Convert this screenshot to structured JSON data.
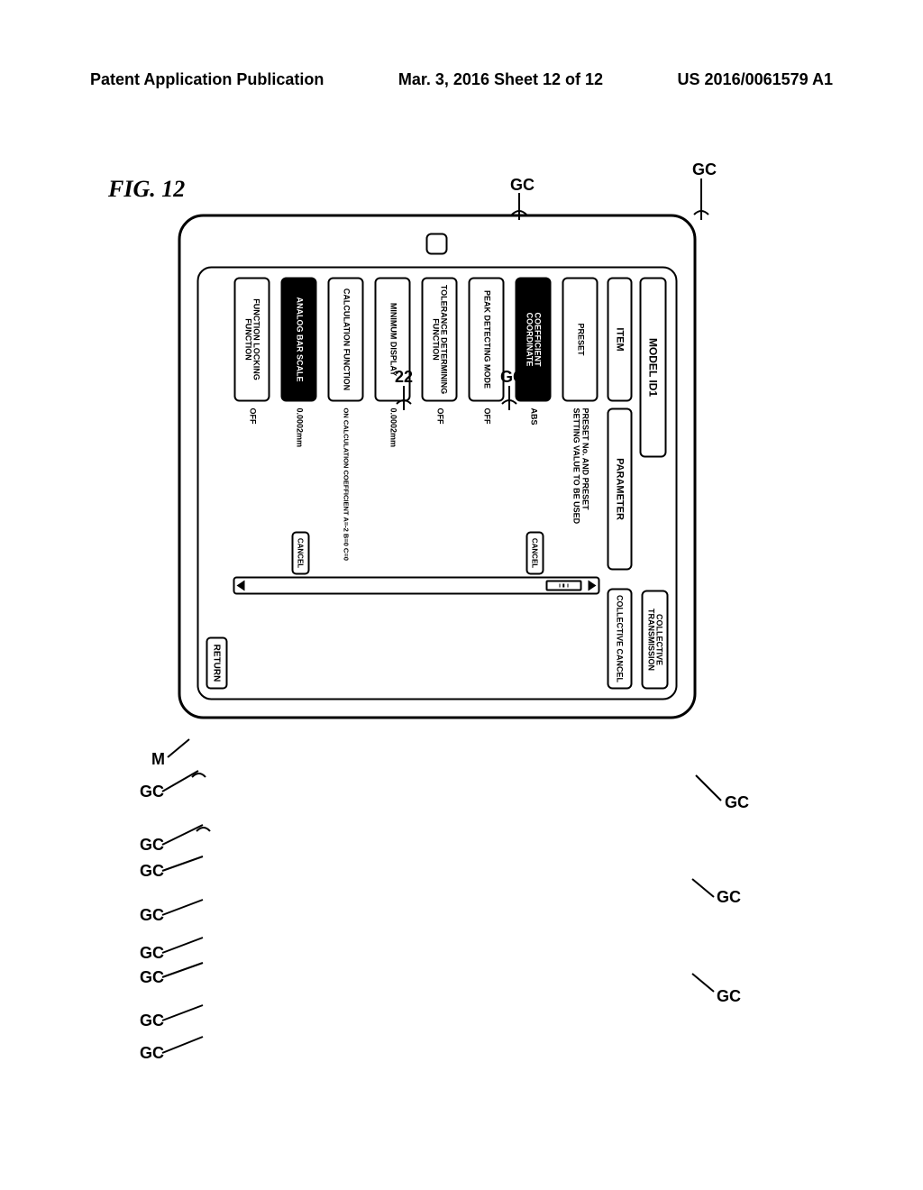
{
  "header": {
    "left": "Patent Application Publication",
    "middle": "Mar. 3, 2016  Sheet 12 of 12",
    "right": "US 2016/0061579 A1"
  },
  "figure_label": "FIG. 12",
  "labels": {
    "M": "M",
    "GC": "GC",
    "twenty_two": "22"
  },
  "ui": {
    "model": "MODEL ID1",
    "collective_transmission": "COLLECTIVE\nTRANSMISSION",
    "item_header": "ITEM",
    "parameter_header": "PARAMETER",
    "collective_cancel": "COLLECTIVE CANCEL",
    "return": "RETURN",
    "cancel": "CANCEL",
    "rows": [
      {
        "item": "PRESET",
        "param": "PRESET No. AND PRESET\nSETTING VALUE TO BE USED",
        "selected": false,
        "cancel": false
      },
      {
        "item": "COEFFICIENT\nCOORDINATE",
        "param": "ABS",
        "selected": true,
        "cancel": true
      },
      {
        "item": "PEAK DETECTING MODE",
        "param": "OFF",
        "selected": false,
        "cancel": false
      },
      {
        "item": "TOLERANCE DETERMINING\nFUNCTION",
        "param": "OFF",
        "selected": false,
        "cancel": false
      },
      {
        "item": "MINIMUM DISPLAY",
        "param": "0.0002mm",
        "selected": false,
        "cancel": false
      },
      {
        "item": "CALCULATION FUNCTION",
        "param": "ON CALCULATION COEFFICIENT A=-2 B=0 C=0",
        "selected": false,
        "cancel": false
      },
      {
        "item": "ANALOG BAR SCALE",
        "param": "0.0002mm",
        "selected": true,
        "cancel": true
      },
      {
        "item": "FUNCTION LOCKING\nFUNCTION",
        "param": "OFF",
        "selected": false,
        "cancel": false
      }
    ]
  },
  "style": {
    "stroke": "#000000",
    "bg": "#ffffff",
    "selected_bg": "#000000",
    "selected_fg": "#ffffff",
    "font_main": 12,
    "font_small": 9,
    "border_radius_device": 28,
    "border_radius_btn": 6,
    "border_width": 2.5
  },
  "callouts": {
    "note": "All 'GC' callouts point to interactive UI buttons; '22' points to screen; 'M' points to device body.",
    "gc_targets": [
      "COLLECTIVE TRANSMISSION",
      "COLLECTIVE CANCEL",
      "CANCEL (row2)",
      "CANCEL (row7)",
      "RETURN",
      "PRESET",
      "COEFFICIENT COORDINATE",
      "PEAK DETECTING MODE",
      "TOLERANCE DETERMINING FUNCTION",
      "MINIMUM DISPLAY",
      "CALCULATION FUNCTION",
      "ANALOG BAR SCALE",
      "FUNCTION LOCKING FUNCTION"
    ]
  }
}
